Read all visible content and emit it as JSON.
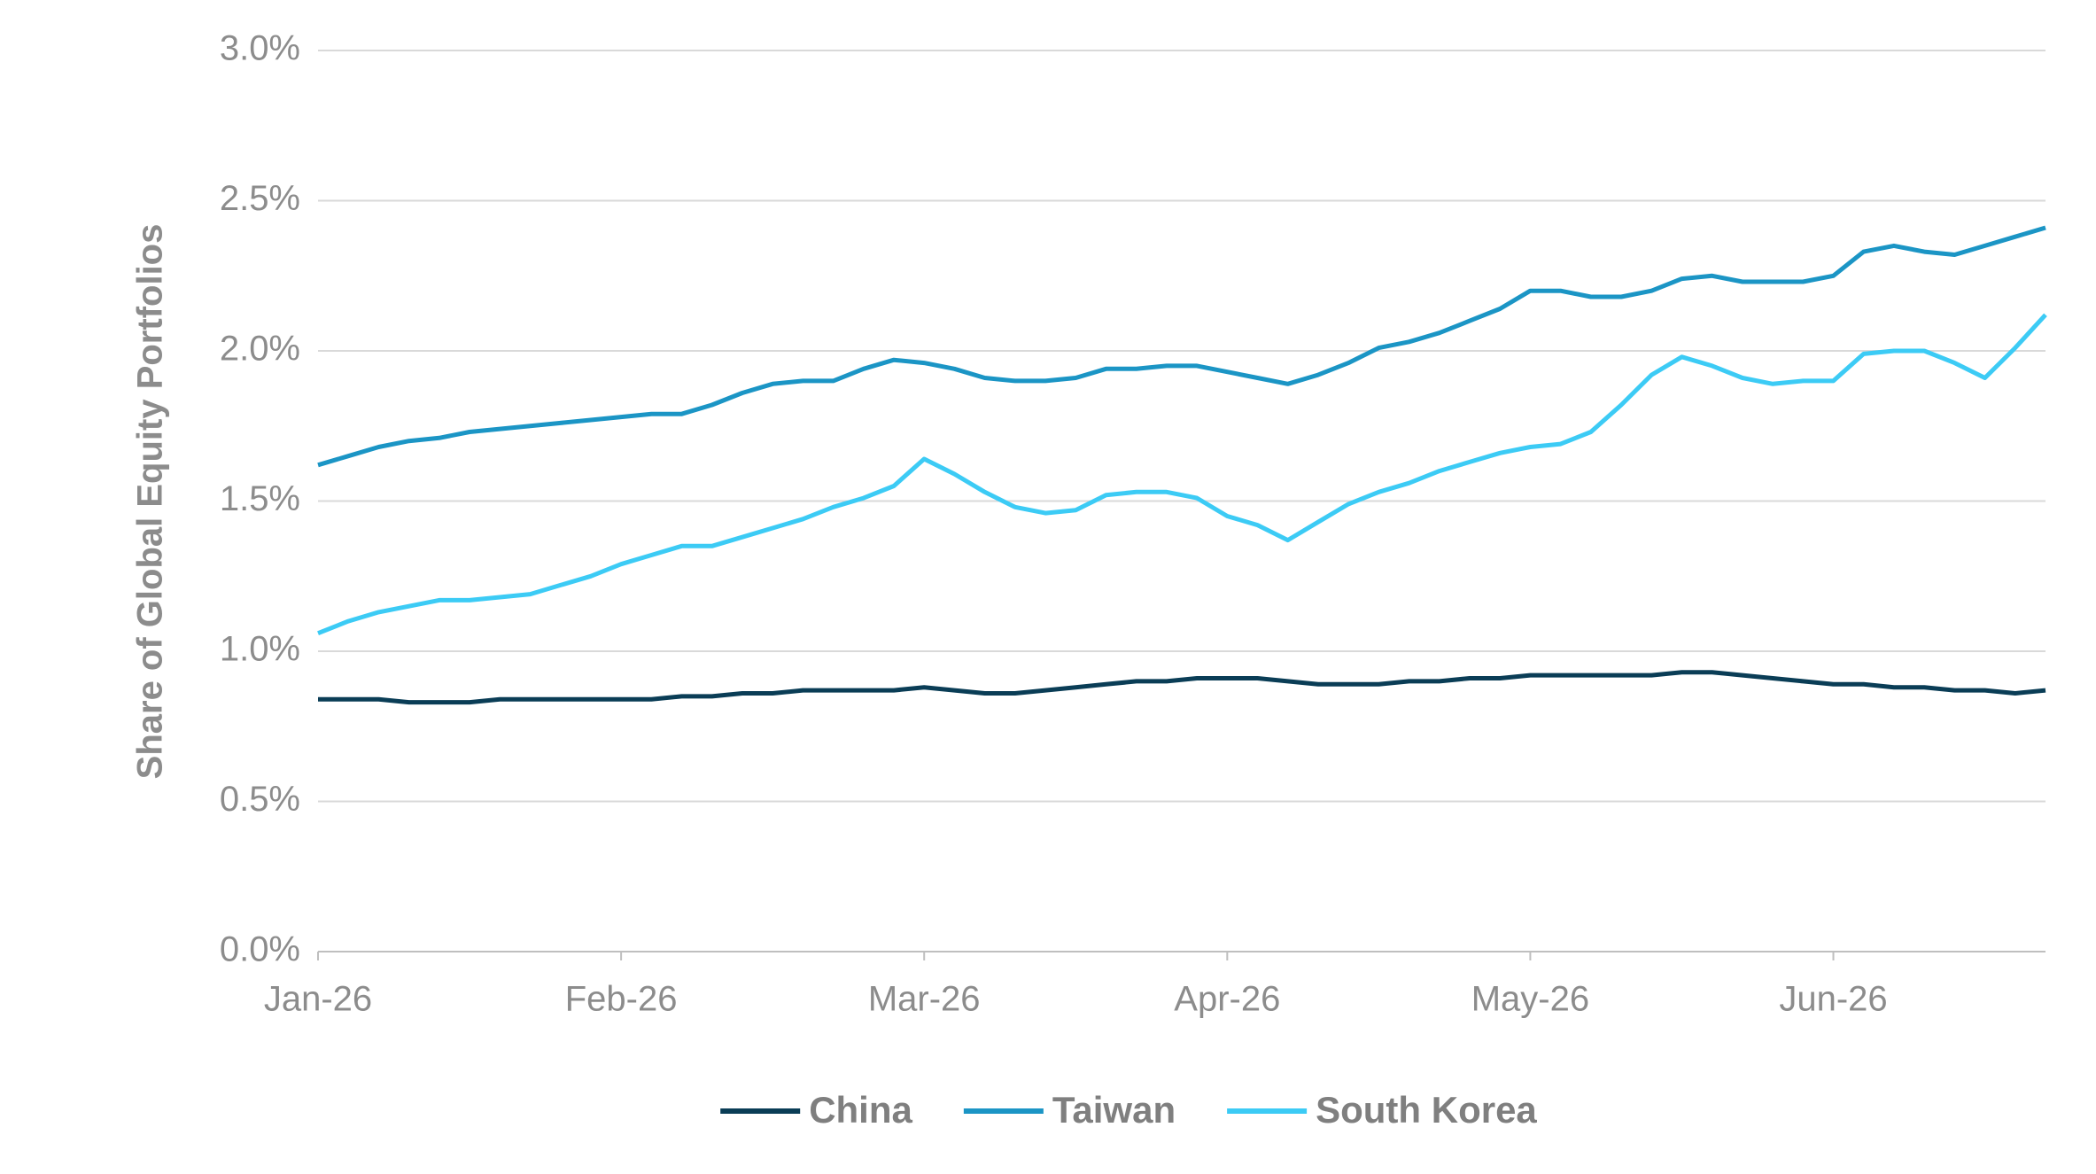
{
  "chart_data": {
    "type": "line",
    "y_label": "Share of Global Equity Portfolios",
    "categories": [
      "Jan-26",
      null,
      null,
      null,
      null,
      null,
      null,
      null,
      null,
      null,
      "Feb-26",
      null,
      null,
      null,
      null,
      null,
      null,
      null,
      null,
      null,
      "Mar-26",
      null,
      null,
      null,
      null,
      null,
      null,
      null,
      null,
      null,
      "Apr-26",
      null,
      null,
      null,
      null,
      null,
      null,
      null,
      null,
      null,
      "May-26",
      null,
      null,
      null,
      null,
      null,
      null,
      null,
      null,
      null,
      "Jun-26",
      null,
      null,
      null,
      null,
      null,
      null,
      null
    ],
    "series": [
      {
        "name": "China",
        "color": "#0a3d56",
        "values": [
          0.84,
          0.84,
          0.84,
          0.83,
          0.83,
          0.83,
          0.84,
          0.84,
          0.84,
          0.84,
          0.84,
          0.84,
          0.85,
          0.85,
          0.86,
          0.86,
          0.87,
          0.87,
          0.87,
          0.87,
          0.88,
          0.87,
          0.86,
          0.86,
          0.87,
          0.88,
          0.89,
          0.9,
          0.9,
          0.91,
          0.91,
          0.91,
          0.9,
          0.89,
          0.89,
          0.89,
          0.9,
          0.9,
          0.91,
          0.91,
          0.92,
          0.92,
          0.92,
          0.92,
          0.92,
          0.93,
          0.93,
          0.92,
          0.91,
          0.9,
          0.89,
          0.89,
          0.88,
          0.88,
          0.87,
          0.87,
          0.86,
          0.87
        ]
      },
      {
        "name": "Taiwan",
        "color": "#1b95c5",
        "values": [
          1.62,
          1.65,
          1.68,
          1.7,
          1.71,
          1.73,
          1.74,
          1.75,
          1.76,
          1.77,
          1.78,
          1.79,
          1.79,
          1.82,
          1.86,
          1.89,
          1.9,
          1.9,
          1.94,
          1.97,
          1.96,
          1.94,
          1.91,
          1.9,
          1.9,
          1.91,
          1.94,
          1.94,
          1.95,
          1.95,
          1.93,
          1.91,
          1.89,
          1.92,
          1.96,
          2.01,
          2.03,
          2.06,
          2.1,
          2.14,
          2.2,
          2.2,
          2.18,
          2.18,
          2.2,
          2.24,
          2.25,
          2.23,
          2.23,
          2.23,
          2.25,
          2.33,
          2.35,
          2.33,
          2.32,
          2.35,
          2.38,
          2.41
        ]
      },
      {
        "name": "South Korea",
        "color": "#3ccbf5",
        "values": [
          1.06,
          1.1,
          1.13,
          1.15,
          1.17,
          1.17,
          1.18,
          1.19,
          1.22,
          1.25,
          1.29,
          1.32,
          1.35,
          1.35,
          1.38,
          1.41,
          1.44,
          1.48,
          1.51,
          1.55,
          1.64,
          1.59,
          1.53,
          1.48,
          1.46,
          1.47,
          1.52,
          1.53,
          1.53,
          1.51,
          1.45,
          1.42,
          1.37,
          1.43,
          1.49,
          1.53,
          1.56,
          1.6,
          1.63,
          1.66,
          1.68,
          1.69,
          1.73,
          1.82,
          1.92,
          1.98,
          1.95,
          1.91,
          1.89,
          1.9,
          1.9,
          1.99,
          2.0,
          2.0,
          1.96,
          1.91,
          2.01,
          2.12
        ]
      }
    ],
    "ylim": [
      0,
      3
    ],
    "yticks": [
      {
        "value": 0,
        "label": "0.0%"
      },
      {
        "value": 0.5,
        "label": "0.5%"
      },
      {
        "value": 1,
        "label": "1.0%"
      },
      {
        "value": 1.5,
        "label": "1.5%"
      },
      {
        "value": 2,
        "label": "2.0%"
      },
      {
        "value": 2.5,
        "label": "2.5%"
      },
      {
        "value": 3,
        "label": "3.0%"
      }
    ],
    "grid": true,
    "legend": "bottom"
  }
}
